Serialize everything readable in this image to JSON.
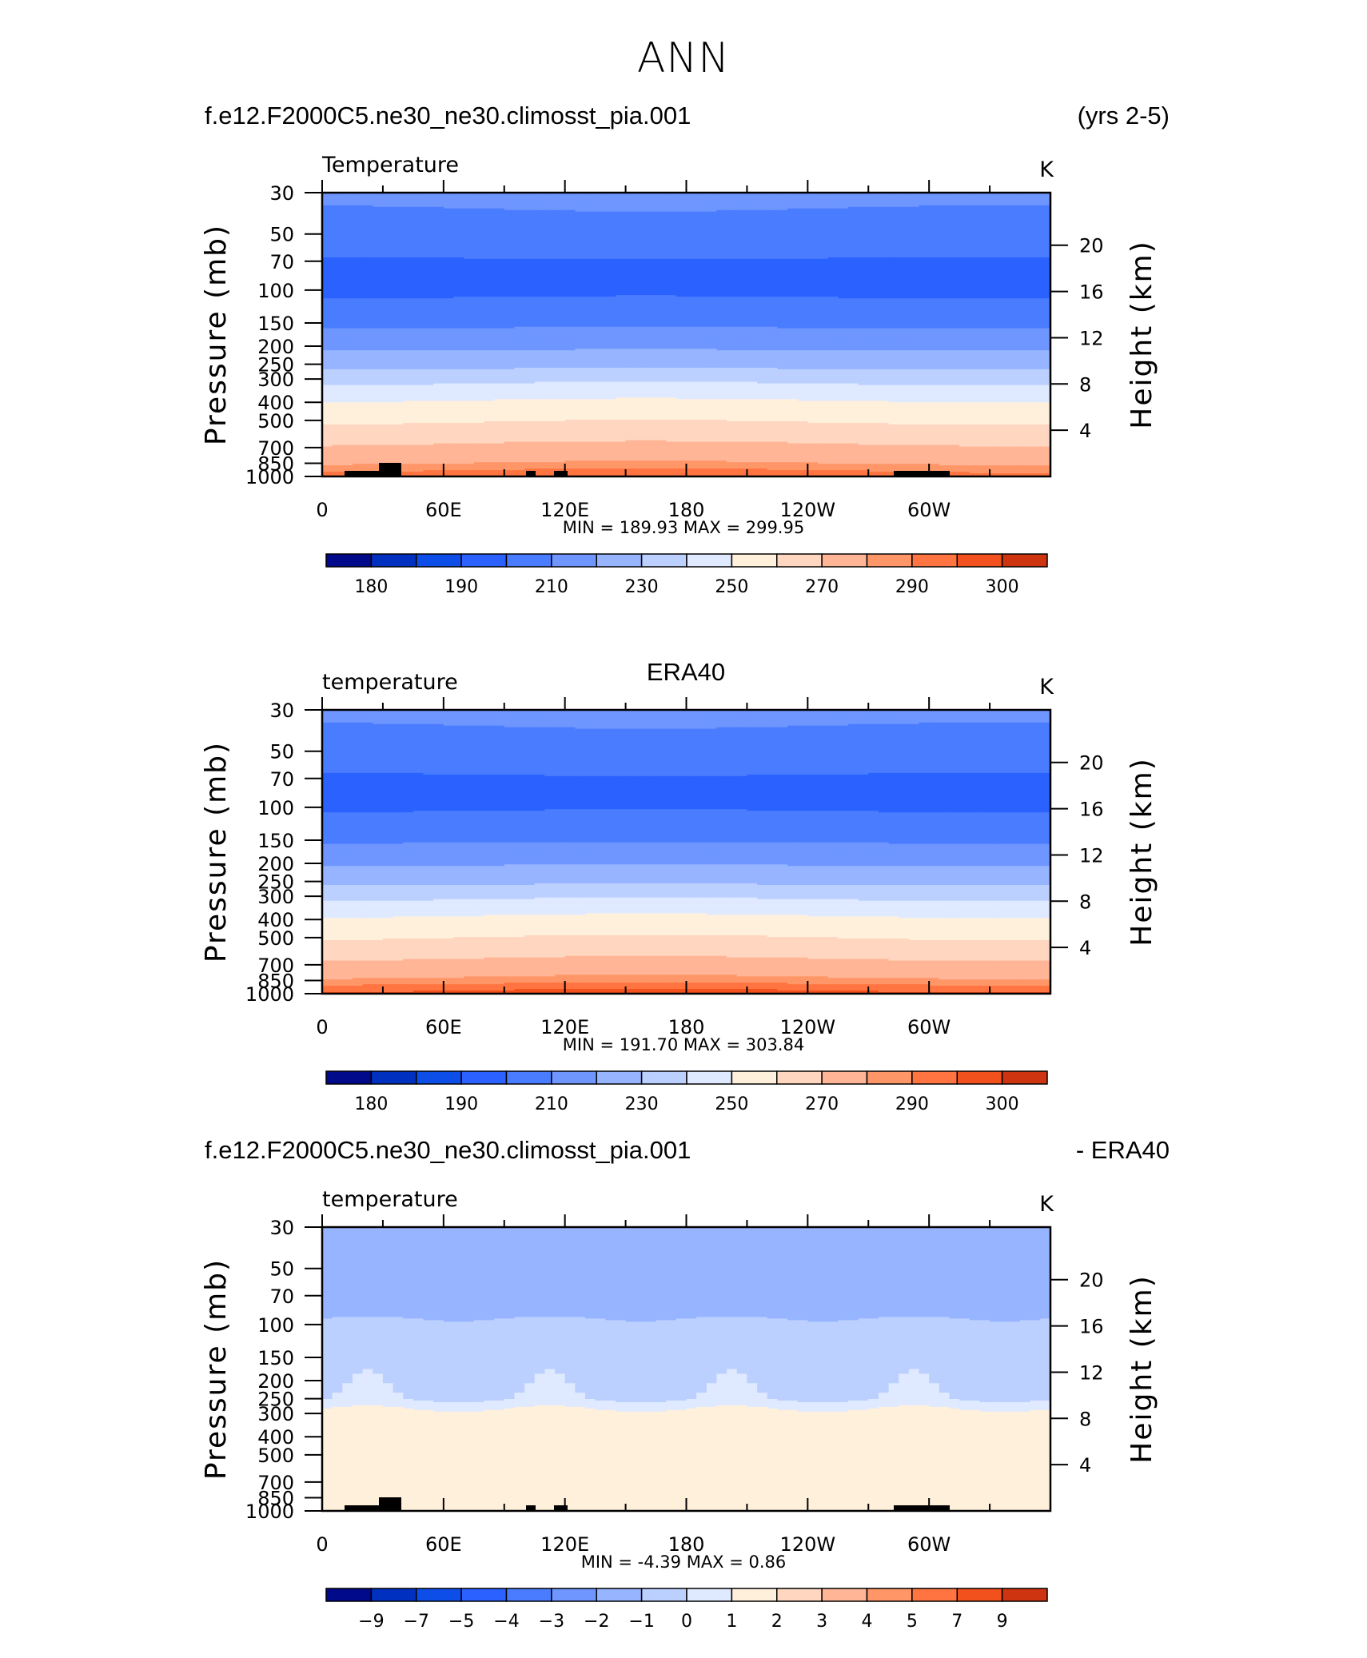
{
  "figure_title": "ANN",
  "colors": {
    "palette": [
      "#000a8a",
      "#0030c0",
      "#0e4ee8",
      "#2b62ff",
      "#4a7cff",
      "#6f96ff",
      "#96b4ff",
      "#bcd0ff",
      "#dfe9ff",
      "#fff0dc",
      "#ffd6c0",
      "#ffb596",
      "#ff9668",
      "#ff7440",
      "#f2501c",
      "#cf3410",
      "#a81f0c",
      "#780a06"
    ],
    "diff_palette": [
      "#000a8a",
      "#0030c0",
      "#0e4ee8",
      "#2b62ff",
      "#4a7cff",
      "#6f96ff",
      "#96b4ff",
      "#bcd0ff",
      "#dfe9ff",
      "#fff0dc",
      "#ffd6c0",
      "#ffb596",
      "#ff9668",
      "#ff7440",
      "#f2501c",
      "#cf3410",
      "#a81f0c",
      "#780a06"
    ],
    "mask": "#000000"
  },
  "chart_data": [
    {
      "type": "heatmap",
      "header_left": "f.e12.F2000C5.ne30_ne30.climosst_pia.001",
      "header_right": "(yrs 2-5)",
      "header_center": "",
      "left_string": "Temperature",
      "right_string": "K",
      "xlabel": "",
      "ylabel": "Pressure (mb)",
      "ylabel_right": "Height (km)",
      "x_ticklabels": [
        "0",
        "60E",
        "120E",
        "180",
        "120W",
        "60W"
      ],
      "y_ticklabels": [
        "30",
        "50",
        "70",
        "100",
        "150",
        "200",
        "250",
        "300",
        "400",
        "500",
        "700",
        "850",
        "1000"
      ],
      "y_right_ticklabels": [
        "20",
        "16",
        "12",
        "8",
        "4"
      ],
      "stats": "MIN =  189.93   MAX =  299.95",
      "colorbar_labels": [
        "180",
        "190",
        "210",
        "230",
        "250",
        "270",
        "290",
        "300"
      ],
      "levels": [
        175,
        180,
        185,
        190,
        200,
        210,
        220,
        230,
        240,
        250,
        260,
        270,
        280,
        285,
        290,
        295,
        300,
        305
      ],
      "profile_p": [
        30,
        40,
        50,
        60,
        70,
        85,
        100,
        125,
        150,
        175,
        200,
        250,
        300,
        350,
        400,
        500,
        600,
        700,
        850,
        925,
        1000
      ],
      "profile_T": [
        212,
        209,
        206,
        203,
        199,
        198,
        198,
        203,
        208,
        213,
        218,
        227,
        237,
        245,
        251,
        259,
        266,
        272,
        280,
        285,
        288
      ],
      "topography": true,
      "diff": false
    },
    {
      "type": "heatmap",
      "header_left": "",
      "header_right": "",
      "header_center": "ERA40",
      "left_string": "temperature",
      "right_string": "K",
      "xlabel": "",
      "ylabel": "Pressure (mb)",
      "ylabel_right": "Height (km)",
      "x_ticklabels": [
        "0",
        "60E",
        "120E",
        "180",
        "120W",
        "60W"
      ],
      "y_ticklabels": [
        "30",
        "50",
        "70",
        "100",
        "150",
        "200",
        "250",
        "300",
        "400",
        "500",
        "700",
        "850",
        "1000"
      ],
      "y_right_ticklabels": [
        "20",
        "16",
        "12",
        "8",
        "4"
      ],
      "stats": "MIN =  191.70   MAX =  303.84",
      "colorbar_labels": [
        "180",
        "190",
        "210",
        "230",
        "250",
        "270",
        "290",
        "300"
      ],
      "levels": [
        175,
        180,
        185,
        190,
        200,
        210,
        220,
        230,
        240,
        250,
        260,
        270,
        280,
        285,
        290,
        295,
        300,
        305
      ],
      "profile_p": [
        30,
        40,
        50,
        60,
        70,
        85,
        100,
        125,
        150,
        175,
        200,
        250,
        300,
        350,
        400,
        500,
        600,
        700,
        850,
        925,
        1000
      ],
      "profile_T": [
        212,
        209,
        206,
        202,
        199,
        199,
        199,
        204,
        209,
        214,
        219,
        228,
        238,
        246,
        252,
        260,
        267,
        273,
        282,
        288,
        292
      ],
      "topography": false,
      "diff": false
    },
    {
      "type": "heatmap",
      "header_left": "f.e12.F2000C5.ne30_ne30.climosst_pia.001",
      "header_right": "- ERA40",
      "header_center": "",
      "left_string": "temperature",
      "right_string": "K",
      "xlabel": "",
      "ylabel": "Pressure (mb)",
      "ylabel_right": "Height (km)",
      "x_ticklabels": [
        "0",
        "60E",
        "120E",
        "180",
        "120W",
        "60W"
      ],
      "y_ticklabels": [
        "30",
        "50",
        "70",
        "100",
        "150",
        "200",
        "250",
        "300",
        "400",
        "500",
        "700",
        "850",
        "1000"
      ],
      "y_right_ticklabels": [
        "20",
        "16",
        "12",
        "8",
        "4"
      ],
      "stats": "MIN =    -4.39   MAX =      0.86",
      "colorbar_labels": [
        "−9",
        "−7",
        "−5",
        "−4",
        "−3",
        "−2",
        "−1",
        "0",
        "1",
        "2",
        "3",
        "4",
        "5",
        "7",
        "9"
      ],
      "levels": [
        -11,
        -9,
        -8,
        -7,
        -6,
        -5,
        -4,
        -3,
        -2,
        -1,
        0,
        1,
        2,
        3,
        4,
        5,
        6,
        7,
        9
      ],
      "profile_p": [
        30,
        50,
        60,
        70,
        80,
        90,
        100,
        150,
        200,
        250,
        300,
        400,
        500,
        700,
        850,
        1000
      ],
      "profile_T": [
        -3.5,
        -3.5,
        -3.5,
        -3.8,
        -3.5,
        -3.2,
        -2.6,
        -2.4,
        -2.3,
        -2.1,
        -0.5,
        -0.5,
        -0.5,
        -0.7,
        -0.6,
        -0.5
      ],
      "topography": true,
      "diff": true
    }
  ]
}
